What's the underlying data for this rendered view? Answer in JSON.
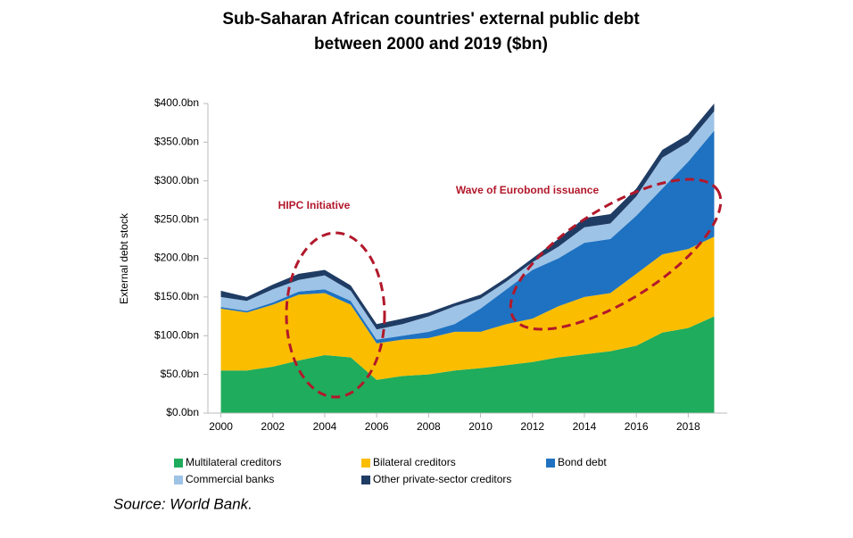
{
  "chart_data": {
    "type": "stacked_area",
    "title": "Sub-Saharan African countries' external public debt",
    "subtitle": "between 2000 and 2019 ($bn)",
    "y_label": "External debt stock",
    "source": "Source: World Bank.",
    "annotations": [
      "HIPC Initiative",
      "Wave of Eurobond issuance"
    ],
    "x": [
      2000,
      2001,
      2002,
      2003,
      2004,
      2005,
      2006,
      2007,
      2008,
      2009,
      2010,
      2011,
      2012,
      2013,
      2014,
      2015,
      2016,
      2017,
      2018,
      2019
    ],
    "xlim": [
      1999.5,
      2019.5
    ],
    "xticks": [
      2000,
      2002,
      2004,
      2006,
      2008,
      2010,
      2012,
      2014,
      2016,
      2018
    ],
    "ylim": [
      0,
      400
    ],
    "yticks": [
      {
        "value": 0,
        "label": "$0.0bn"
      },
      {
        "value": 50,
        "label": "$50.0bn"
      },
      {
        "value": 100,
        "label": "$100.0bn"
      },
      {
        "value": 150,
        "label": "$150.0bn"
      },
      {
        "value": 200,
        "label": "$200.0bn"
      },
      {
        "value": 250,
        "label": "$250.0bn"
      },
      {
        "value": 300,
        "label": "$300.0bn"
      },
      {
        "value": 350,
        "label": "$350.0bn"
      },
      {
        "value": 400,
        "label": "$400.0bn"
      }
    ],
    "series": [
      {
        "name": "Multilateral creditors",
        "color": "#1fac5c",
        "values": [
          55,
          55,
          60,
          68,
          75,
          72,
          43,
          48,
          50,
          55,
          58,
          62,
          66,
          72,
          76,
          80,
          87,
          104,
          110,
          125
        ]
      },
      {
        "name": "Bilateral creditors",
        "color": "#fbbd00",
        "values": [
          80,
          75,
          80,
          85,
          80,
          68,
          47,
          47,
          47,
          50,
          47,
          53,
          56,
          66,
          74,
          75,
          93,
          101,
          102,
          103
        ]
      },
      {
        "name": "Bond debt",
        "color": "#1f72c1",
        "values": [
          2,
          2,
          3,
          4,
          5,
          5,
          5,
          5,
          8,
          10,
          30,
          45,
          63,
          62,
          70,
          70,
          75,
          85,
          113,
          137
        ]
      },
      {
        "name": "Commercial banks",
        "color": "#9dc3e6",
        "values": [
          13,
          13,
          17,
          15,
          18,
          13,
          13,
          15,
          20,
          23,
          13,
          10,
          10,
          15,
          20,
          20,
          25,
          40,
          25,
          25
        ]
      },
      {
        "name": "Other private-sector creditors",
        "color": "#1f3c64",
        "values": [
          8,
          5,
          6,
          8,
          7,
          7,
          7,
          7,
          5,
          4,
          5,
          5,
          5,
          10,
          12,
          12,
          10,
          10,
          10,
          10
        ]
      }
    ]
  }
}
